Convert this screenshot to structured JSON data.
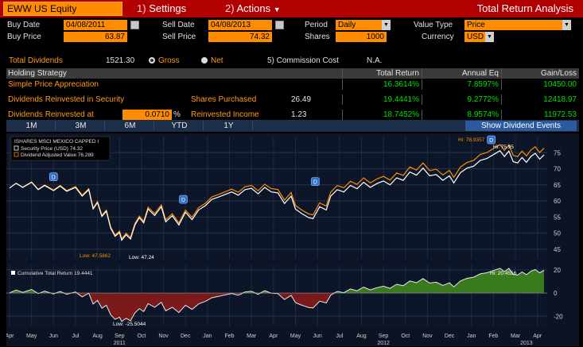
{
  "toolbar": {
    "ticker": "EWW US Equity",
    "settings_num": "1)",
    "settings_label": "Settings",
    "actions_num": "2)",
    "actions_label": "Actions",
    "title": "Total Return Analysis"
  },
  "form": {
    "buy_date_label": "Buy Date",
    "buy_date": "04/08/2011",
    "sell_date_label": "Sell Date",
    "sell_date": "04/08/2013",
    "period_label": "Period",
    "period": "Daily",
    "value_type_label": "Value Type",
    "value_type": "Price",
    "buy_price_label": "Buy Price",
    "buy_price": "63.87",
    "sell_price_label": "Sell Price",
    "sell_price": "74.32",
    "shares_label": "Shares",
    "shares": "1000",
    "currency_label": "Currency",
    "currency": "USD",
    "total_div_label": "Total Dividends",
    "total_div": "1521.30",
    "gross_label": "Gross",
    "net_label": "Net",
    "commission_label": "5) Commission Cost",
    "commission": "N.A."
  },
  "table": {
    "headers": [
      "Holding Strategy",
      "Total Return",
      "Annual Eq",
      "Gain/Loss"
    ],
    "rows": [
      {
        "name": "Simple Price Appreciation",
        "extra_label": "",
        "extra_value": "",
        "total_return": "16.3614%",
        "annual": "7.8597%",
        "gain": "10450.00"
      },
      {
        "name": "Dividends Reinvested in Security",
        "extra_label": "Shares Purchased",
        "extra_value": "26.49",
        "total_return": "19.4441%",
        "annual": "9.2772%",
        "gain": "12418.97"
      },
      {
        "name": "Dividends Reinvested at",
        "rate": "0.0710",
        "rate_unit": "%",
        "extra_label": "Reinvested Income",
        "extra_value": "1.23",
        "total_return": "18.7452%",
        "annual": "8.9574%",
        "gain": "11972.53"
      }
    ]
  },
  "period_tabs": [
    "1M",
    "3M",
    "6M",
    "YTD",
    "1Y"
  ],
  "show_dividend_events": "Show Dividend Events",
  "colors": {
    "orange": "#ff8c00",
    "red_bar": "#b00000",
    "positive": "#00e000",
    "price_line": "#ffffff",
    "div_line": "#ff8c00",
    "area_pos": "#3a7a1e",
    "area_neg": "#7a1a1a"
  },
  "chart_data": [
    {
      "type": "line",
      "legend_title": "ISHARES MSCI MEXICO CAPPED I",
      "series": [
        {
          "name": "Security Price (USD)",
          "last": "74.32",
          "color": "#ffffff"
        },
        {
          "name": "Dividend Adjusted Value",
          "last": "76.289",
          "color": "#ff8c00"
        }
      ],
      "ylim": [
        42,
        80
      ],
      "yticks": [
        "75",
        "70",
        "65",
        "60",
        "55",
        "50",
        "45"
      ],
      "annotations": {
        "high_div": "Hi: 76.9357",
        "high_price": "Hi: 75.95",
        "low_div": "Low: 47.5862",
        "low_price": "Low: 47.24"
      },
      "dividend_marker": "D",
      "x_months": [
        "Apr",
        "May",
        "Jun",
        "Jul",
        "Aug",
        "Sep",
        "Oct",
        "Nov",
        "Dec",
        "Jan",
        "Feb",
        "Mar",
        "Apr",
        "May",
        "Jun",
        "Jul",
        "Aug",
        "Sep",
        "Oct",
        "Nov",
        "Dec",
        "Jan",
        "Feb",
        "Mar",
        "Apr"
      ],
      "x_years": [
        "2011",
        "2012",
        "2013"
      ],
      "points": [
        [
          0,
          64
        ],
        [
          0.3,
          65.5
        ],
        [
          0.6,
          64.2
        ],
        [
          1,
          65.8
        ],
        [
          1.3,
          63.5
        ],
        [
          1.6,
          64.8
        ],
        [
          2,
          63.2
        ],
        [
          2.3,
          64.6
        ],
        [
          2.6,
          63.0
        ],
        [
          3,
          64.2
        ],
        [
          3.3,
          61.5
        ],
        [
          3.6,
          63.5
        ],
        [
          3.8,
          57.5
        ],
        [
          4,
          59.5
        ],
        [
          4.2,
          55.2
        ],
        [
          4.4,
          56.8
        ],
        [
          4.6,
          51.5
        ],
        [
          4.8,
          49.0
        ],
        [
          5,
          50.2
        ],
        [
          5.1,
          47.8
        ],
        [
          5.3,
          49.5
        ],
        [
          5.5,
          48.2
        ],
        [
          5.7,
          52.5
        ],
        [
          5.9,
          54.8
        ],
        [
          6.1,
          53.2
        ],
        [
          6.3,
          57.5
        ],
        [
          6.6,
          55.5
        ],
        [
          6.9,
          58.2
        ],
        [
          7.1,
          53.5
        ],
        [
          7.4,
          55.4
        ],
        [
          7.7,
          52.5
        ],
        [
          8,
          56.5
        ],
        [
          8.3,
          54.2
        ],
        [
          8.6,
          57.2
        ],
        [
          8.9,
          58.5
        ],
        [
          9.2,
          60.5
        ],
        [
          9.5,
          61.2
        ],
        [
          9.8,
          62.0
        ],
        [
          10.1,
          62.8
        ],
        [
          10.4,
          61.8
        ],
        [
          10.7,
          63.5
        ],
        [
          11,
          63.9
        ],
        [
          11.3,
          62.2
        ],
        [
          11.6,
          64.2
        ],
        [
          11.9,
          62.8
        ],
        [
          12.2,
          62.5
        ],
        [
          12.5,
          59.2
        ],
        [
          12.8,
          61.5
        ],
        [
          13.0,
          57.5
        ],
        [
          13.3,
          56.0
        ],
        [
          13.6,
          54.8
        ],
        [
          13.8,
          54.5
        ],
        [
          14.1,
          58.2
        ],
        [
          14.4,
          57.2
        ],
        [
          14.6,
          61.5
        ],
        [
          14.9,
          63.5
        ],
        [
          15.2,
          62.8
        ],
        [
          15.5,
          64.8
        ],
        [
          15.8,
          63.8
        ],
        [
          16.1,
          65.8
        ],
        [
          16.4,
          64.2
        ],
        [
          16.7,
          65.4
        ],
        [
          17,
          66.2
        ],
        [
          17.3,
          65.0
        ],
        [
          17.6,
          67.2
        ],
        [
          17.9,
          66.4
        ],
        [
          18.2,
          69.0
        ],
        [
          18.5,
          68.0
        ],
        [
          18.8,
          70.2
        ],
        [
          19.1,
          67.8
        ],
        [
          19.4,
          68.2
        ],
        [
          19.7,
          66.4
        ],
        [
          20,
          67.8
        ],
        [
          20.2,
          65.6
        ],
        [
          20.5,
          68.8
        ],
        [
          20.8,
          70.2
        ],
        [
          21.1,
          70.8
        ],
        [
          21.4,
          72.6
        ],
        [
          21.7,
          73.2
        ],
        [
          22,
          74.4
        ],
        [
          22.3,
          75.6
        ],
        [
          22.5,
          73.8
        ],
        [
          22.7,
          75.5
        ],
        [
          22.9,
          72.2
        ],
        [
          23.1,
          71.8
        ],
        [
          23.3,
          73.5
        ],
        [
          23.5,
          72.0
        ],
        [
          23.7,
          73.8
        ],
        [
          23.9,
          74.8
        ],
        [
          24.1,
          73.0
        ],
        [
          24.3,
          74.3
        ]
      ]
    },
    {
      "type": "area",
      "legend": "Cumulative Total Return 19.4441",
      "ylim": [
        -28,
        24
      ],
      "yticks": [
        "20",
        "0",
        "-20"
      ],
      "annotations": {
        "high": "Hi: 20.4556",
        "low": "Low: -25.5044"
      }
    }
  ]
}
